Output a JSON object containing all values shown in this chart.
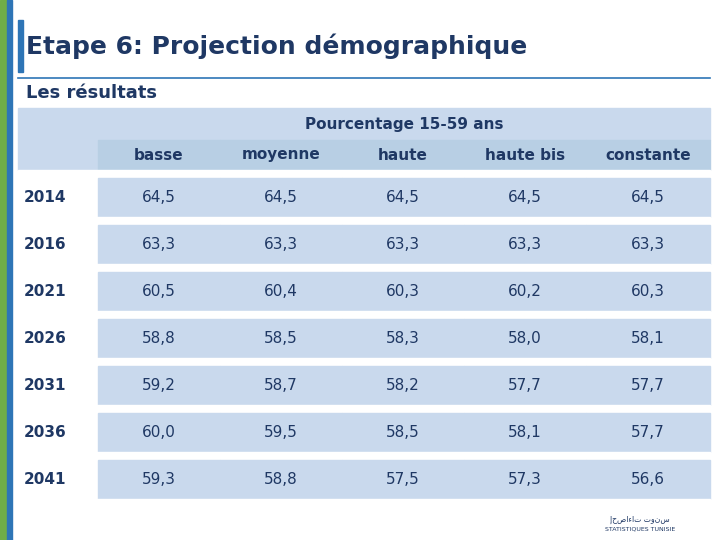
{
  "title": "Etape 6: Projection démographique",
  "subtitle": "Les résultats",
  "table_header_merged": "Pourcentage 15-59 ans",
  "col_headers": [
    "",
    "basse",
    "moyenne",
    "haute",
    "haute bis",
    "constante"
  ],
  "rows": [
    [
      "2014",
      "64,5",
      "64,5",
      "64,5",
      "64,5",
      "64,5"
    ],
    [
      "2016",
      "63,3",
      "63,3",
      "63,3",
      "63,3",
      "63,3"
    ],
    [
      "2021",
      "60,5",
      "60,4",
      "60,3",
      "60,2",
      "60,3"
    ],
    [
      "2026",
      "58,8",
      "58,5",
      "58,3",
      "58,0",
      "58,1"
    ],
    [
      "2031",
      "59,2",
      "58,7",
      "58,2",
      "57,7",
      "57,7"
    ],
    [
      "2036",
      "60,0",
      "59,5",
      "58,5",
      "58,1",
      "57,7"
    ],
    [
      "2041",
      "59,3",
      "58,8",
      "57,5",
      "57,3",
      "56,6"
    ]
  ],
  "bg_color": "#ffffff",
  "left_sidebar_green": "#70ad47",
  "left_sidebar_blue": "#2e75b6",
  "title_bar_color": "#2e75b6",
  "title_color": "#1f3864",
  "subtitle_color": "#1f3864",
  "sep_line_color": "#2e75b6",
  "table_merged_header_bg": "#c9d9ed",
  "table_merged_header_color": "#1f3864",
  "col_header_bg": "#b8cfe4",
  "col_header_color": "#1f3864",
  "data_row_blue_bg": "#c9d9ed",
  "data_row_white_bg": "#ffffff",
  "year_col_bg": "#ffffff",
  "year_color": "#1f3864",
  "data_color": "#1f3864",
  "title_fontsize": 18,
  "subtitle_fontsize": 13,
  "header_fontsize": 11,
  "col_header_fontsize": 11,
  "data_fontsize": 11
}
